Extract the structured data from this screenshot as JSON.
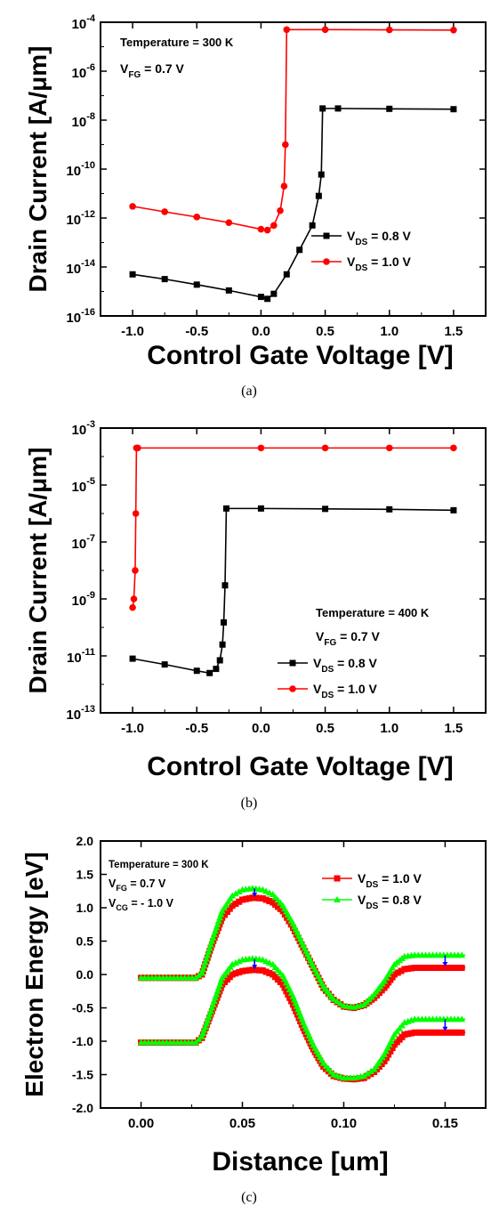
{
  "chart_data": [
    {
      "type": "line",
      "caption": "(a)",
      "ylog": true,
      "xlabel": "Control Gate Voltage [V]",
      "ylabel": "Drain Current [A/μm]",
      "xlim": [
        -1.25,
        1.75
      ],
      "ylim_exp": [
        -16,
        -4
      ],
      "xticks": [
        "-1.0",
        "-0.5",
        "0.0",
        "0.5",
        "1.0",
        "1.5"
      ],
      "yticks_exp": [
        "-16",
        "-14",
        "-12",
        "-10",
        "-8",
        "-6",
        "-4"
      ],
      "annotations": [
        {
          "text": "Temperature = 300 K"
        },
        {
          "text": "V",
          "sub": "FG",
          "rest": " = 0.7 V"
        }
      ],
      "legend_position": "center-right",
      "series": [
        {
          "name_main": "V",
          "name_sub": "DS",
          "name_rest": " = 0.8 V",
          "color": "#000000",
          "x": [
            -1.0,
            -0.75,
            -0.5,
            -0.25,
            0.0,
            0.05,
            0.1,
            0.2,
            0.3,
            0.4,
            0.45,
            0.47,
            0.48,
            0.6,
            1.0,
            1.5
          ],
          "y": [
            5e-15,
            3.2e-15,
            1.9e-15,
            1.1e-15,
            6e-16,
            5e-16,
            8e-16,
            5e-15,
            5e-14,
            5e-13,
            8e-12,
            6e-11,
            3e-08,
            3e-08,
            2.9e-08,
            2.8e-08
          ]
        },
        {
          "name_main": "V",
          "name_sub": "DS",
          "name_rest": " = 1.0 V",
          "color": "#ff0000",
          "x": [
            -1.0,
            -0.75,
            -0.5,
            -0.25,
            0.0,
            0.05,
            0.1,
            0.15,
            0.18,
            0.19,
            0.2,
            0.5,
            1.0,
            1.5
          ],
          "y": [
            3e-12,
            1.8e-12,
            1.1e-12,
            6.5e-13,
            3.5e-13,
            3.2e-13,
            5e-13,
            2e-12,
            2e-11,
            1e-09,
            5e-05,
            5e-05,
            4.9e-05,
            4.8e-05
          ]
        }
      ]
    },
    {
      "type": "line",
      "caption": "(b)",
      "ylog": true,
      "xlabel": "Control Gate Voltage [V]",
      "ylabel": "Drain Current [A/μm]",
      "xlim": [
        -1.25,
        1.75
      ],
      "ylim_exp": [
        -13,
        -3
      ],
      "xticks": [
        "-1.0",
        "-0.5",
        "0.0",
        "0.5",
        "1.0",
        "1.5"
      ],
      "yticks_exp": [
        "-13",
        "-11",
        "-9",
        "-7",
        "-5",
        "-3"
      ],
      "annotations": [
        {
          "text": "Temperature = 400 K"
        },
        {
          "text": "V",
          "sub": "FG",
          "rest": " = 0.7 V"
        }
      ],
      "legend_position": "bottom-right",
      "series": [
        {
          "name_main": "V",
          "name_sub": "DS",
          "name_rest": " = 0.8 V",
          "color": "#000000",
          "x": [
            -1.0,
            -0.75,
            -0.5,
            -0.4,
            -0.35,
            -0.32,
            -0.3,
            -0.29,
            -0.28,
            -0.27,
            0.0,
            0.5,
            1.0,
            1.5
          ],
          "y": [
            8e-12,
            5e-12,
            3e-12,
            2.5e-12,
            3.5e-12,
            7e-12,
            2.5e-11,
            1.5e-10,
            3e-09,
            1.5e-06,
            1.5e-06,
            1.45e-06,
            1.4e-06,
            1.3e-06
          ]
        },
        {
          "name_main": "V",
          "name_sub": "DS",
          "name_rest": " = 1.0 V",
          "color": "#ff0000",
          "x": [
            -1.0,
            -0.99,
            -0.98,
            -0.975,
            -0.97,
            -0.96,
            0.0,
            0.5,
            1.0,
            1.5
          ],
          "y": [
            5e-10,
            1e-09,
            1e-08,
            1e-06,
            0.0002,
            0.0002,
            0.0002,
            0.0002,
            0.0002,
            0.0002
          ]
        }
      ]
    },
    {
      "type": "line",
      "caption": "(c)",
      "xlabel": "Distance [um]",
      "ylabel": "Electron Energy [eV]",
      "xlim": [
        -0.02,
        0.17
      ],
      "ylim": [
        -2.0,
        2.0
      ],
      "xticks": [
        "0.00",
        "0.05",
        "0.10",
        "0.15"
      ],
      "yticks": [
        "-2.0",
        "-1.5",
        "-1.0",
        "-0.5",
        "0.0",
        "0.5",
        "1.0",
        "1.5",
        "2.0"
      ],
      "annotations": [
        {
          "text": "Temperature = 300 K"
        },
        {
          "text": "V",
          "sub": "FG",
          "rest": " = 0.7 V"
        },
        {
          "text": "V",
          "sub": "CG",
          "rest": " = - 1.0 V"
        }
      ],
      "legend_position": "top-right",
      "series": [
        {
          "name_main": "V",
          "name_sub": "DS",
          "name_rest": " = 1.0 V",
          "color": "#ff0000",
          "band": "conduction",
          "x": [
            0.0,
            0.027,
            0.03,
            0.035,
            0.04,
            0.045,
            0.05,
            0.055,
            0.06,
            0.065,
            0.07,
            0.075,
            0.08,
            0.085,
            0.09,
            0.095,
            0.1,
            0.105,
            0.11,
            0.115,
            0.12,
            0.125,
            0.13,
            0.135,
            0.16
          ],
          "y": [
            -0.05,
            -0.05,
            0.0,
            0.45,
            0.85,
            1.03,
            1.12,
            1.15,
            1.14,
            1.08,
            0.95,
            0.7,
            0.4,
            0.1,
            -0.2,
            -0.38,
            -0.48,
            -0.5,
            -0.46,
            -0.35,
            -0.2,
            0.0,
            0.08,
            0.1,
            0.1
          ]
        },
        {
          "name_main": "V",
          "name_sub": "DS",
          "name_rest": " = 0.8 V",
          "color": "#00ff00",
          "band": "conduction",
          "x": [
            0.0,
            0.027,
            0.03,
            0.035,
            0.04,
            0.045,
            0.05,
            0.055,
            0.06,
            0.065,
            0.07,
            0.075,
            0.08,
            0.085,
            0.09,
            0.095,
            0.1,
            0.105,
            0.11,
            0.115,
            0.12,
            0.125,
            0.13,
            0.135,
            0.16
          ],
          "y": [
            -0.05,
            -0.05,
            0.02,
            0.5,
            0.95,
            1.18,
            1.27,
            1.29,
            1.27,
            1.2,
            1.03,
            0.76,
            0.44,
            0.12,
            -0.18,
            -0.37,
            -0.47,
            -0.49,
            -0.45,
            -0.3,
            -0.1,
            0.15,
            0.27,
            0.29,
            0.29
          ]
        },
        {
          "name_main": "V",
          "name_sub": "DS",
          "name_rest": " = 1.0 V",
          "color": "#ff0000",
          "band": "valence",
          "x": [
            0.0,
            0.027,
            0.03,
            0.035,
            0.04,
            0.045,
            0.05,
            0.055,
            0.06,
            0.065,
            0.07,
            0.075,
            0.08,
            0.085,
            0.09,
            0.095,
            0.1,
            0.105,
            0.11,
            0.115,
            0.12,
            0.125,
            0.13,
            0.135,
            0.16
          ],
          "y": [
            -1.02,
            -1.02,
            -0.95,
            -0.55,
            -0.15,
            0.0,
            0.05,
            0.07,
            0.06,
            0.0,
            -0.15,
            -0.45,
            -0.8,
            -1.12,
            -1.38,
            -1.52,
            -1.56,
            -1.57,
            -1.55,
            -1.46,
            -1.3,
            -1.05,
            -0.9,
            -0.87,
            -0.87
          ]
        },
        {
          "name_main": "V",
          "name_sub": "DS",
          "name_rest": " = 0.8 V",
          "color": "#00ff00",
          "band": "valence",
          "x": [
            0.0,
            0.027,
            0.03,
            0.035,
            0.04,
            0.045,
            0.05,
            0.055,
            0.06,
            0.065,
            0.07,
            0.075,
            0.08,
            0.085,
            0.09,
            0.095,
            0.1,
            0.105,
            0.11,
            0.115,
            0.12,
            0.125,
            0.13,
            0.135,
            0.16
          ],
          "y": [
            -1.02,
            -1.02,
            -0.93,
            -0.5,
            -0.05,
            0.15,
            0.22,
            0.24,
            0.22,
            0.15,
            -0.02,
            -0.33,
            -0.72,
            -1.06,
            -1.33,
            -1.5,
            -1.55,
            -1.55,
            -1.52,
            -1.42,
            -1.2,
            -0.9,
            -0.72,
            -0.67,
            -0.67
          ]
        }
      ],
      "arrows": [
        {
          "x": 0.056,
          "y_from": 1.29,
          "y_to": 1.16,
          "color": "#0000ff"
        },
        {
          "x": 0.056,
          "y_from": 0.23,
          "y_to": 0.08,
          "color": "#0000ff"
        },
        {
          "x": 0.15,
          "y_from": 0.29,
          "y_to": 0.12,
          "color": "#0000ff"
        },
        {
          "x": 0.15,
          "y_from": -0.67,
          "y_to": -0.85,
          "color": "#0000ff"
        }
      ]
    }
  ]
}
